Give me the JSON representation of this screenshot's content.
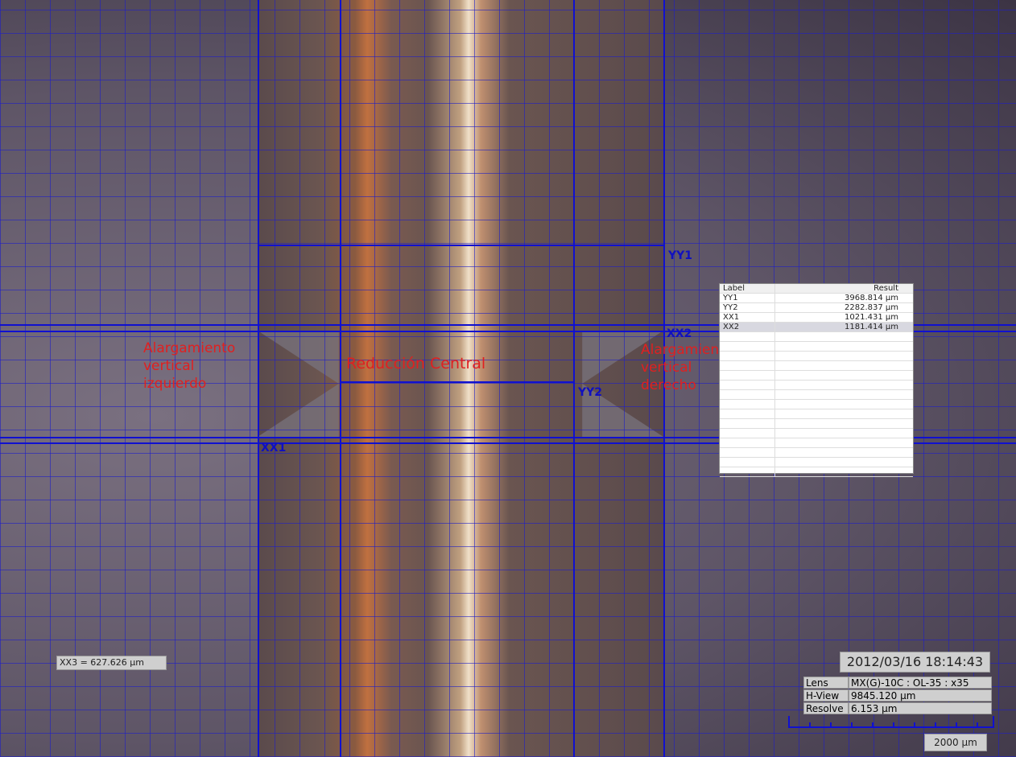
{
  "measure_labels": {
    "yy1": "YY1",
    "yy2": "YY2",
    "xx1": "XX1",
    "xx2": "XX2"
  },
  "annotations": {
    "left": [
      "Alargamiento",
      "vertical",
      "izquierdo"
    ],
    "center": "Reducción Central",
    "right": [
      "Alargamiento",
      "vertical",
      "derecho"
    ]
  },
  "table": {
    "header": [
      "Label",
      "Result"
    ],
    "rows": [
      [
        "YY1",
        "3968.814 μm"
      ],
      [
        "YY2",
        "2282.837 μm"
      ],
      [
        "XX1",
        "1021.431 μm"
      ],
      [
        "XX2",
        "1181.414 μm"
      ]
    ]
  },
  "xx3_readout": "XX3 = 627.626 μm",
  "timestamp": "2012/03/16 18:14:43",
  "info": [
    [
      "Lens",
      "MX(G)-10C : OL-35 : x35"
    ],
    [
      "H-View",
      "9845.120 μm"
    ],
    [
      "Resolve",
      "6.153 μm"
    ]
  ],
  "scale_bar": "2000 μm"
}
